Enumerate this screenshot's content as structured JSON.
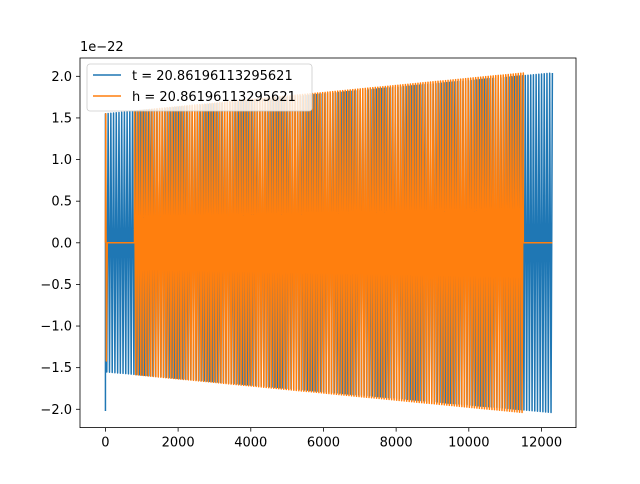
{
  "chart_data": {
    "type": "line",
    "title": "",
    "xlabel": "",
    "ylabel": "",
    "y_offset_text": "1e−22",
    "xlim": [
      -700,
      12950
    ],
    "ylim": [
      -2.22,
      2.22
    ],
    "x_ticks": [
      0,
      2000,
      4000,
      6000,
      8000,
      10000,
      12000
    ],
    "x_tick_labels": [
      "0",
      "2000",
      "4000",
      "6000",
      "8000",
      "10000",
      "12000"
    ],
    "y_ticks": [
      -2.0,
      -1.5,
      -1.0,
      -0.5,
      0.0,
      0.5,
      1.0,
      1.5,
      2.0
    ],
    "y_tick_labels": [
      "−2.0",
      "−1.5",
      "−1.0",
      "−0.5",
      "0.0",
      "0.5",
      "1.0",
      "1.5",
      "2.0"
    ],
    "grid": false,
    "legend_position": "upper-left",
    "series": [
      {
        "name": "t = 20.86196113295621",
        "color": "#1f77b4",
        "x_start": 0,
        "x_end": 12300,
        "amplitude_start": 1.55,
        "amplitude_end": 2.04,
        "initial_min": -2.02,
        "cycles": 165,
        "offset_zero_until": 0
      },
      {
        "name": "h = 20.86196113295621",
        "color": "#ff7f0e",
        "x_start": 0,
        "x_end": 12300,
        "signal_start": 0,
        "zero_from": 50,
        "zero_to": 800,
        "signal_end": 11500,
        "amplitude_start": 1.55,
        "amplitude_end": 2.04,
        "cycles": 155
      }
    ]
  }
}
